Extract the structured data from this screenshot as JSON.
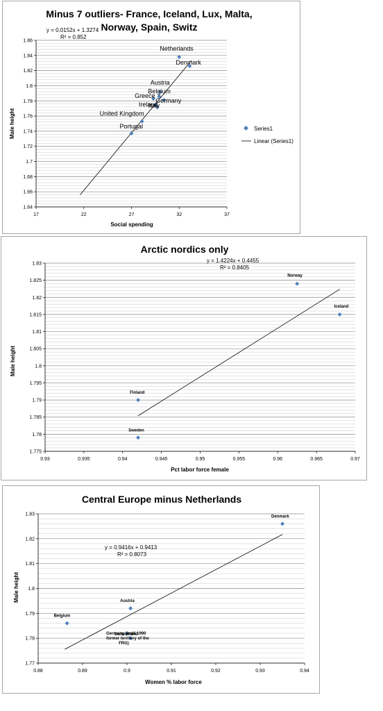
{
  "charts": [
    {
      "id": "c1",
      "title_lines": [
        "Minus 7 outliers- France, Iceland, Lux, Malta,",
        "Norway, Spain, Switz"
      ],
      "equation": "y = 0.0152x + 1.3274",
      "r2": "R² = 0.852",
      "legend": {
        "series": "Series1",
        "trend": "Linear (Series1)"
      }
    },
    {
      "id": "c2",
      "title_lines": [
        "Arctic nordics only"
      ],
      "equation": "y = 1.4224x + 0.4455",
      "r2": "R² = 0.8405"
    },
    {
      "id": "c3",
      "title_lines": [
        "Central Europe minus Netherlands"
      ],
      "equation": "y = 0.9416x + 0.9413",
      "r2": "R² = 0.8073"
    }
  ],
  "chart_data": [
    {
      "type": "scatter",
      "title": "Minus 7 outliers- France, Iceland, Lux, Malta, Norway, Spain, Switz",
      "xlabel": "Social spending",
      "ylabel": "Male height",
      "xlim": [
        17,
        37
      ],
      "ylim": [
        1.64,
        1.86
      ],
      "xticks": [
        "17",
        "22",
        "27",
        "32",
        "37"
      ],
      "yticks": [
        "1.64",
        "1.66",
        "1.68",
        "1.7",
        "1.72",
        "1.74",
        "1.76",
        "1.78",
        "1.8",
        "1.82",
        "1.84",
        "1.86"
      ],
      "grid": "horizontal",
      "legend": "right",
      "series": [
        {
          "name": "Series1",
          "color": "#4f81bd",
          "points": [
            {
              "label": "Netherlands",
              "x": 32.0,
              "y": 1.838
            },
            {
              "label": "Denmark",
              "x": 33.1,
              "y": 1.826
            },
            {
              "label": "Austria",
              "x": 30.0,
              "y": 1.792
            },
            {
              "label": "Belgium",
              "x": 29.9,
              "y": 1.786
            },
            {
              "label": "Germany",
              "x": 30.4,
              "y": 1.781
            },
            {
              "label": "Greece",
              "x": 29.3,
              "y": 1.783
            },
            {
              "label": "Ireland",
              "x": 29.5,
              "y": 1.775
            },
            {
              "label": "Italy",
              "x": 29.7,
              "y": 1.772
            },
            {
              "label": "United Kingdom",
              "x": 28.1,
              "y": 1.753
            },
            {
              "label": "Portugal",
              "x": 27.0,
              "y": 1.737
            }
          ]
        }
      ],
      "trendline": {
        "name": "Linear (Series1)",
        "slope": 0.0152,
        "intercept": 1.3274,
        "x_range": [
          21.6,
          33.3
        ]
      }
    },
    {
      "type": "scatter",
      "title": "Arctic nordics only",
      "xlabel": "Pct labor force female",
      "ylabel": "Male height",
      "xlim": [
        0.93,
        0.97
      ],
      "ylim": [
        1.775,
        1.83
      ],
      "xticks": [
        "0.93",
        "0.935",
        "0.94",
        "0.945",
        "0.95",
        "0.955",
        "0.96",
        "0.965",
        "0.97"
      ],
      "yticks": [
        "1.775",
        "1.78",
        "1.785",
        "1.79",
        "1.795",
        "1.8",
        "1.805",
        "1.81",
        "1.815",
        "1.82",
        "1.825",
        "1.83"
      ],
      "grid": "horizontal",
      "series": [
        {
          "color": "#4f81bd",
          "points": [
            {
              "label": "Norway",
              "x": 0.9625,
              "y": 1.824
            },
            {
              "label": "Iceland",
              "x": 0.968,
              "y": 1.815
            },
            {
              "label": "Finland",
              "x": 0.942,
              "y": 1.79
            },
            {
              "label": "Sweden",
              "x": 0.942,
              "y": 1.779
            }
          ]
        }
      ],
      "trendline": {
        "slope": 1.4224,
        "intercept": 0.4455,
        "x_range": [
          0.942,
          0.968
        ]
      }
    },
    {
      "type": "scatter",
      "title": "Central Europe minus Netherlands",
      "xlabel": "Women % labor force",
      "ylabel": "Male height",
      "xlim": [
        0.88,
        0.94
      ],
      "ylim": [
        1.77,
        1.83
      ],
      "xticks": [
        "0.88",
        "0.89",
        "0.9",
        "0.91",
        "0.92",
        "0.93",
        "0.94"
      ],
      "yticks": [
        "1.77",
        "1.78",
        "1.79",
        "1.8",
        "1.81",
        "1.82",
        "1.83"
      ],
      "grid": "horizontal",
      "series": [
        {
          "color": "#4f81bd",
          "points": [
            {
              "label": "Denmark",
              "x": 0.935,
              "y": 1.826
            },
            {
              "label": "Austria",
              "x": 0.9008,
              "y": 1.792
            },
            {
              "label": "Belgium",
              "x": 0.8865,
              "y": 1.786
            },
            {
              "label": "Germany (until 1990 former territory of the FRG)",
              "x": 0.9008,
              "y": 1.78
            },
            {
              "label": "Switzerland",
              "x": 0.9,
              "y": 1.782
            }
          ]
        }
      ],
      "trendline": {
        "slope": 0.9416,
        "intercept": 0.9413,
        "x_range": [
          0.886,
          0.935
        ]
      }
    }
  ]
}
